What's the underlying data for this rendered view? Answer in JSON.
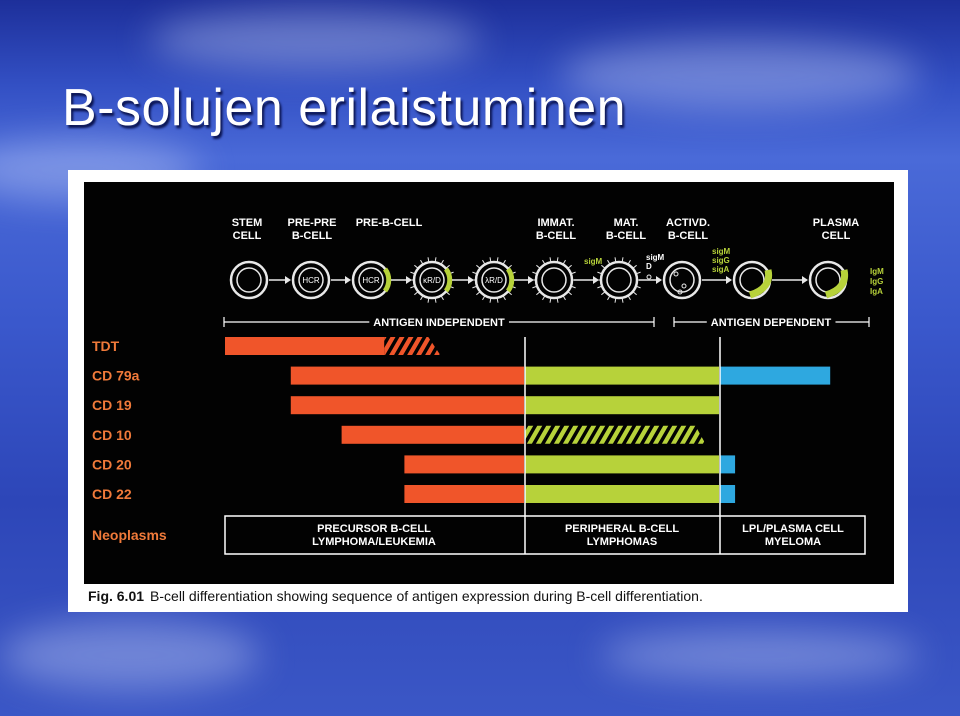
{
  "slide": {
    "title": "B-solujen erilaistuminen"
  },
  "figure": {
    "label": "Fig. 6.01",
    "caption": "B-cell differentiation showing sequence of antigen expression during B-cell differentiation.",
    "stages": [
      {
        "name": "STEM\nCELL"
      },
      {
        "name": "PRE-PRE\nB-CELL"
      },
      {
        "name": "PRE-B-CELL"
      },
      {
        "name": "IMMAT.\nB-CELL"
      },
      {
        "name": "MAT.\nB-CELL"
      },
      {
        "name": "ACTIVD.\nB-CELL"
      },
      {
        "name": "PLASMA\nCELL"
      }
    ],
    "cell_labels": [
      "HCR",
      "HCR",
      "κR/D",
      "λR/D"
    ],
    "surface_labels": {
      "immat": "sigM",
      "mat": "sigM\nD",
      "actvd": "sigM\nsigG\nsigA",
      "plasma": "IgM\nIgG\nIgA"
    },
    "phases": {
      "independent": "ANTIGEN INDEPENDENT",
      "dependent": "ANTIGEN DEPENDENT"
    },
    "markers": [
      {
        "name": "TDT",
        "segments": [
          {
            "phase": "precursor",
            "from": 0.0,
            "to": 0.72,
            "color": "#f0552a",
            "hatched_tail": true
          }
        ]
      },
      {
        "name": "CD 79a",
        "segments": [
          {
            "phase": "precursor",
            "from": 0.22,
            "to": 1.0,
            "color": "#f0552a"
          },
          {
            "phase": "peripheral",
            "from": 0,
            "to": 1,
            "color": "#b7d23a"
          },
          {
            "phase": "plasma",
            "from": 0,
            "to": 0.95,
            "color": "#2ea8e0"
          }
        ]
      },
      {
        "name": "CD 19",
        "segments": [
          {
            "phase": "precursor",
            "from": 0.22,
            "to": 1.0,
            "color": "#f0552a"
          },
          {
            "phase": "peripheral",
            "from": 0,
            "to": 1,
            "color": "#b7d23a"
          }
        ]
      },
      {
        "name": "CD 10",
        "segments": [
          {
            "phase": "precursor",
            "from": 0.39,
            "to": 1.0,
            "color": "#f0552a"
          },
          {
            "phase": "peripheral",
            "from": 0,
            "to": 0.93,
            "color": "#b7d23a",
            "hatched": true
          }
        ]
      },
      {
        "name": "CD 20",
        "segments": [
          {
            "phase": "precursor",
            "from": 0.6,
            "to": 1.0,
            "color": "#f0552a"
          },
          {
            "phase": "peripheral",
            "from": 0,
            "to": 1,
            "color": "#b7d23a"
          },
          {
            "phase": "plasma",
            "from": 0,
            "to": 0.13,
            "color": "#2ea8e0"
          }
        ]
      },
      {
        "name": "CD 22",
        "segments": [
          {
            "phase": "precursor",
            "from": 0.6,
            "to": 1.0,
            "color": "#f0552a"
          },
          {
            "phase": "peripheral",
            "from": 0,
            "to": 1,
            "color": "#b7d23a"
          },
          {
            "phase": "plasma",
            "from": 0,
            "to": 0.13,
            "color": "#2ea8e0"
          }
        ]
      }
    ],
    "neoplasms_label": "Neoplasms",
    "neoplasms": [
      {
        "text": "PRECURSOR B-CELL\nLYMPHOMA/LEUKEMIA"
      },
      {
        "text": "PERIPHERAL B-CELL\nLYMPHOMAS"
      },
      {
        "text": "LPL/PLASMA CELL\nMYELOMA"
      }
    ],
    "colors": {
      "precursor": "#f0552a",
      "peripheral": "#b7d23a",
      "plasma": "#2ea8e0",
      "label": "#f07a3a",
      "caption_text": "#111111"
    }
  }
}
